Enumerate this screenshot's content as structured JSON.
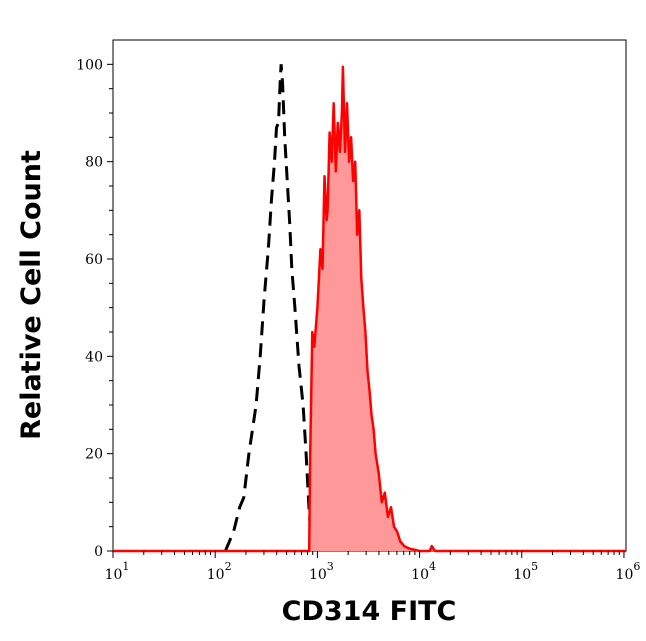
{
  "chart_data": {
    "type": "area",
    "title": "",
    "xlabel": "CD314 FITC",
    "ylabel": "Relative Cell Count",
    "xscale": "log",
    "xlim": [
      10,
      1000000
    ],
    "ylim": [
      0,
      105
    ],
    "grid": false,
    "legend": "none",
    "x_tick_labels": [
      {
        "base": "10",
        "exp": "1",
        "value": 10
      },
      {
        "base": "10",
        "exp": "2",
        "value": 100
      },
      {
        "base": "10",
        "exp": "3",
        "value": 1000
      },
      {
        "base": "10",
        "exp": "4",
        "value": 10000
      },
      {
        "base": "10",
        "exp": "5",
        "value": 100000
      },
      {
        "base": "10",
        "exp": "6",
        "value": 1000000
      }
    ],
    "y_ticks": [
      "0",
      "20",
      "40",
      "60",
      "80",
      "100"
    ],
    "series": [
      {
        "style": "dashed-line",
        "color": "#000000",
        "log10_x": [
          2.1,
          2.18,
          2.24,
          2.28,
          2.33,
          2.4,
          2.44,
          2.48,
          2.52,
          2.55,
          2.58,
          2.6,
          2.62,
          2.635,
          2.645,
          2.66,
          2.68,
          2.7,
          2.73,
          2.75,
          2.78,
          2.82,
          2.86,
          2.89,
          2.92,
          2.95
        ],
        "y": [
          0,
          4,
          9,
          11,
          20,
          30,
          40,
          52,
          62,
          72,
          80,
          87,
          88,
          96,
          100,
          96,
          85,
          78,
          67,
          58,
          50,
          38,
          30,
          20,
          8,
          0
        ]
      },
      {
        "style": "filled",
        "color": "#ff0000",
        "fill": "#ff9999",
        "log10_x": [
          1.0,
          2.92,
          2.93,
          2.95,
          2.97,
          3.0,
          3.03,
          3.05,
          3.07,
          3.09,
          3.1,
          3.12,
          3.14,
          3.16,
          3.18,
          3.2,
          3.22,
          3.24,
          3.25,
          3.27,
          3.29,
          3.31,
          3.33,
          3.35,
          3.37,
          3.39,
          3.41,
          3.43,
          3.45,
          3.47,
          3.49,
          3.51,
          3.53,
          3.55,
          3.57,
          3.6,
          3.63,
          3.66,
          3.69,
          3.72,
          3.75,
          3.78,
          3.81,
          3.85,
          3.9,
          4.0,
          4.1,
          4.12,
          4.15,
          6.02
        ],
        "y": [
          0,
          0,
          20,
          45,
          42,
          50,
          62,
          58,
          77,
          68,
          70,
          86,
          80,
          92,
          78,
          88,
          82,
          90,
          99.5,
          82,
          92,
          80,
          85,
          76,
          80,
          65,
          70,
          56,
          50,
          45,
          37,
          33,
          28,
          25,
          20,
          16,
          10,
          12,
          7,
          9,
          5,
          4,
          2,
          1,
          0.5,
          0,
          0,
          1,
          0,
          0
        ]
      }
    ]
  }
}
